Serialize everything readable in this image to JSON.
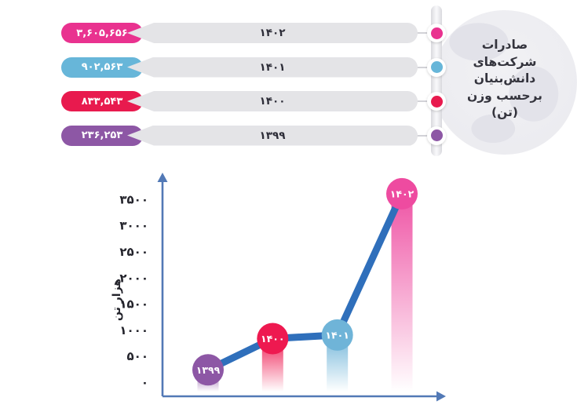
{
  "title": {
    "full": "صادرات شرکت‌های دانش‌بنیان برحسب وزن (تن)",
    "lines": [
      "صادرات",
      "شرکت‌های",
      "دانش‌بنیان",
      "برحسب وزن",
      "(تن)"
    ]
  },
  "legend_rows": [
    {
      "value": "۳,۶۰۵,۶۵۶",
      "year": "۱۴۰۲",
      "color": "#e9328f"
    },
    {
      "value": "۹۰۲,۵۶۳",
      "year": "۱۴۰۱",
      "color": "#67b6d9"
    },
    {
      "value": "۸۳۳,۵۴۳",
      "year": "۱۴۰۰",
      "color": "#e81a4e"
    },
    {
      "value": "۲۳۶,۲۵۳",
      "year": "۱۳۹۹",
      "color": "#8d57a5"
    }
  ],
  "chart_data": {
    "type": "line",
    "categories": [
      "۱۳۹۹",
      "۱۴۰۰",
      "۱۴۰۱",
      "۱۴۰۲"
    ],
    "values": [
      236.253,
      833.543,
      902.563,
      3605.656
    ],
    "title": "صادرات شرکت‌های دانش‌بنیان برحسب وزن (تن)",
    "xlabel": "",
    "ylabel": "هزار تن",
    "y_ticks": [
      0,
      500,
      1000,
      1500,
      2000,
      2500,
      3000,
      3500
    ],
    "y_tick_labels": [
      "۰",
      "۵۰۰",
      "۱۰۰۰",
      "۱۵۰۰",
      "۲۰۰۰",
      "۲۵۰۰",
      "۳۰۰۰",
      "۳۵۰۰"
    ],
    "ylim": [
      0,
      3750
    ],
    "grid": false,
    "legend_position": "none",
    "marker_colors": [
      "#8d57a5",
      "#ee1950",
      "#6fb4d8",
      "#ee4ba0"
    ],
    "line_color": "#2f6fbb",
    "axis_color": "#5279b6",
    "tick_color": "#23232b"
  }
}
